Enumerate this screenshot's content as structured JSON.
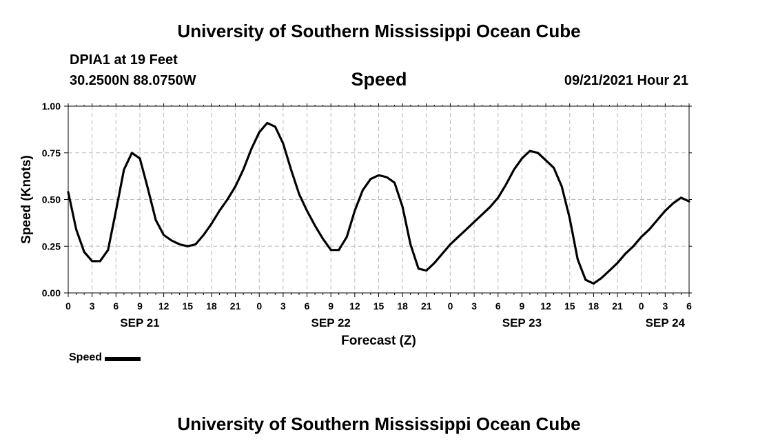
{
  "header": {
    "title": "University of Southern Mississippi Ocean Cube",
    "station": "DPIA1 at 19 Feet",
    "coordinates": "30.2500N  88.0750W",
    "variable": "Speed",
    "datetime": "09/21/2021 Hour 21"
  },
  "footer": {
    "title": "University of Southern Mississippi Ocean Cube"
  },
  "legend": {
    "label": "Speed",
    "color": "#000000"
  },
  "chart_data": {
    "type": "line",
    "title": "Speed",
    "xlabel": "Forecast (Z)",
    "ylabel": "Speed (Knots)",
    "xlim": [
      0,
      78
    ],
    "ylim": [
      0,
      1
    ],
    "x_unit": "hours since SEP 21 00Z",
    "x_tick_values": [
      0,
      3,
      6,
      9,
      12,
      15,
      18,
      21,
      24,
      27,
      30,
      33,
      36,
      39,
      42,
      45,
      48,
      51,
      54,
      57,
      60,
      63,
      66,
      69,
      72,
      75,
      78
    ],
    "x_tick_labels": [
      "0",
      "3",
      "6",
      "9",
      "12",
      "15",
      "18",
      "21",
      "0",
      "3",
      "6",
      "9",
      "12",
      "15",
      "18",
      "21",
      "0",
      "3",
      "6",
      "9",
      "12",
      "15",
      "18",
      "21",
      "0",
      "3",
      "6"
    ],
    "date_labels": [
      {
        "x": 9,
        "label": "SEP 21"
      },
      {
        "x": 33,
        "label": "SEP 22"
      },
      {
        "x": 57,
        "label": "SEP 23"
      },
      {
        "x": 75,
        "label": "SEP 24"
      }
    ],
    "y_ticks": [
      0,
      0.25,
      0.5,
      0.75,
      1
    ],
    "y_tick_labels": [
      "0.00",
      "0.25",
      "0.50",
      "0.75",
      "1.00"
    ],
    "grid": true,
    "series": [
      {
        "name": "Speed",
        "color": "#000000",
        "x": [
          0,
          1,
          2,
          3,
          4,
          5,
          6,
          7,
          8,
          9,
          10,
          11,
          12,
          13,
          14,
          15,
          16,
          17,
          18,
          19,
          20,
          21,
          22,
          23,
          24,
          25,
          26,
          27,
          28,
          29,
          30,
          31,
          32,
          33,
          34,
          35,
          36,
          37,
          38,
          39,
          40,
          41,
          42,
          43,
          44,
          45,
          46,
          47,
          48,
          49,
          50,
          51,
          52,
          53,
          54,
          55,
          56,
          57,
          58,
          59,
          60,
          61,
          62,
          63,
          64,
          65,
          66,
          67,
          68,
          69,
          70,
          71,
          72,
          73,
          74,
          75,
          76,
          77,
          78
        ],
        "values": [
          0.54,
          0.34,
          0.22,
          0.17,
          0.17,
          0.23,
          0.44,
          0.66,
          0.75,
          0.72,
          0.56,
          0.39,
          0.31,
          0.28,
          0.26,
          0.25,
          0.26,
          0.31,
          0.37,
          0.44,
          0.5,
          0.57,
          0.66,
          0.77,
          0.86,
          0.91,
          0.89,
          0.8,
          0.66,
          0.53,
          0.44,
          0.36,
          0.29,
          0.23,
          0.23,
          0.3,
          0.44,
          0.55,
          0.61,
          0.63,
          0.62,
          0.59,
          0.46,
          0.26,
          0.13,
          0.12,
          0.16,
          0.21,
          0.26,
          0.3,
          0.34,
          0.38,
          0.42,
          0.46,
          0.51,
          0.58,
          0.66,
          0.72,
          0.76,
          0.75,
          0.71,
          0.67,
          0.57,
          0.4,
          0.18,
          0.07,
          0.05,
          0.08,
          0.12,
          0.16,
          0.21,
          0.25,
          0.3,
          0.34,
          0.39,
          0.44,
          0.48,
          0.51,
          0.49
        ]
      }
    ]
  }
}
